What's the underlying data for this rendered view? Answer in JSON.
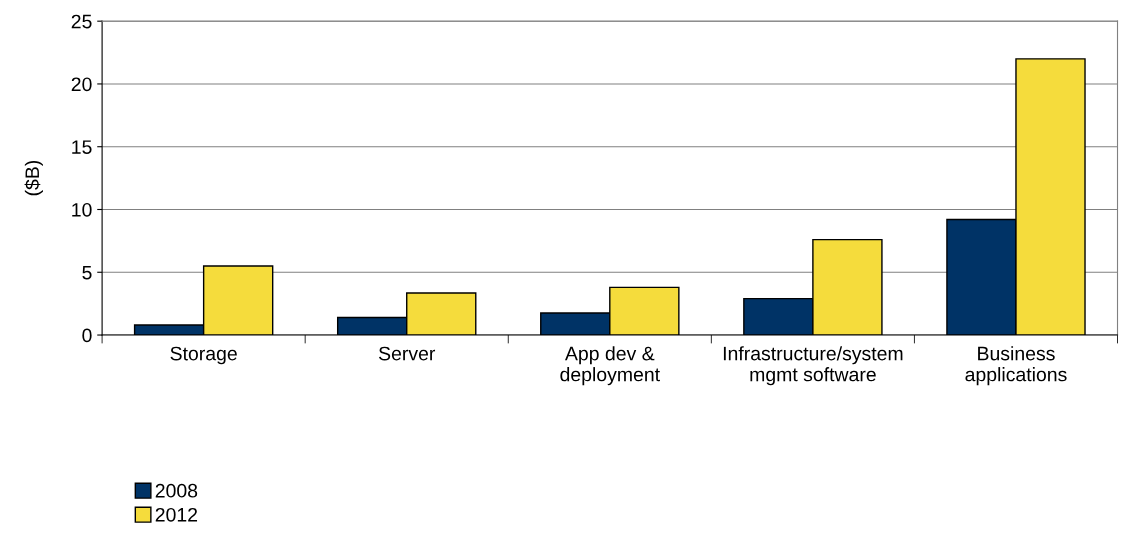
{
  "chart_data": {
    "type": "bar",
    "ylabel": "($B)",
    "categories": [
      "Storage",
      "Server",
      "App dev &\ndeployment",
      "Infrastructure/system\nmgmt software",
      "Business\napplications"
    ],
    "series": [
      {
        "name": "2008",
        "color": "#003366",
        "values": [
          0.8,
          1.4,
          1.75,
          2.9,
          9.2
        ]
      },
      {
        "name": "2012",
        "color": "#f5dc3c",
        "values": [
          5.5,
          3.35,
          3.8,
          7.6,
          22.0
        ]
      }
    ],
    "ylim": [
      0,
      25
    ],
    "yticks": [
      0,
      5,
      10,
      15,
      20,
      25
    ],
    "grid": "y",
    "legend": "bottom left"
  }
}
